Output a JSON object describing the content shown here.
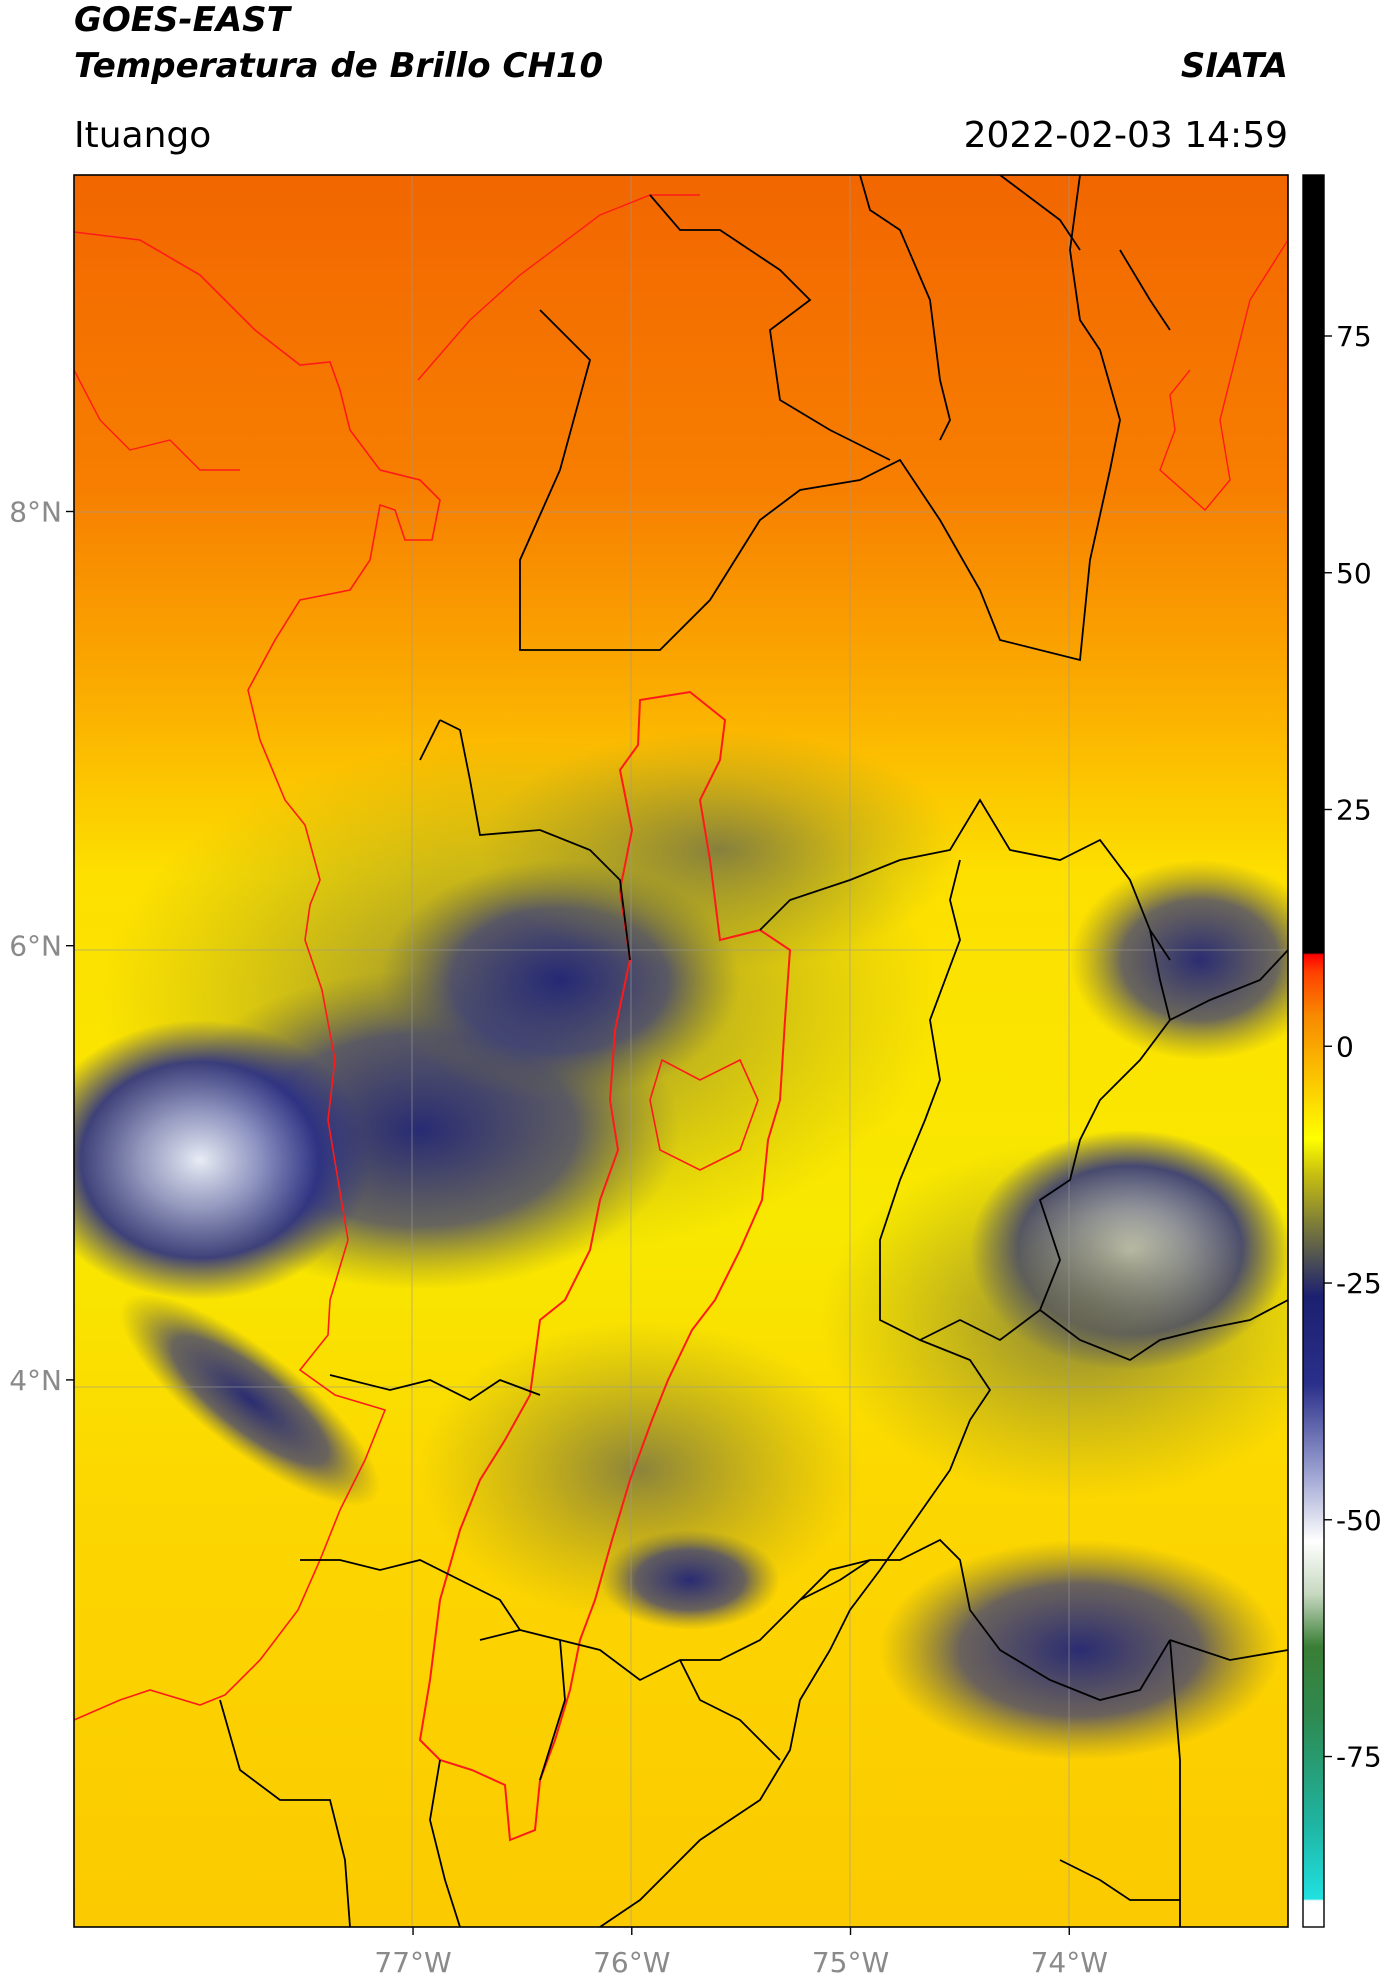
{
  "header": {
    "title_line1": "GOES-EAST",
    "title_line2": "Temperatura de Brillo CH10",
    "org": "SIATA",
    "location": "Ituango",
    "datetime": "2022-02-03 14:59"
  },
  "map": {
    "lon_ticks": [
      {
        "value": -77,
        "label": "77°W"
      },
      {
        "value": -76,
        "label": "76°W"
      },
      {
        "value": -75,
        "label": "75°W"
      },
      {
        "value": -74,
        "label": "74°W"
      }
    ],
    "lat_ticks": [
      {
        "value": 8,
        "label": "8°N"
      },
      {
        "value": 6,
        "label": "6°N"
      },
      {
        "value": 4,
        "label": "4°N"
      }
    ],
    "lon_range": [
      -78.55,
      -73.0
    ],
    "lat_range": [
      1.48,
      9.55
    ],
    "colors": {
      "warm": "#f26c00",
      "mid": "#fde000",
      "cloud": "#23297e",
      "border": "#000000",
      "region_outline": "#ff1a1a"
    }
  },
  "colorbar": {
    "ticks": [
      {
        "value": 75,
        "label": "75"
      },
      {
        "value": 50,
        "label": "50"
      },
      {
        "value": 25,
        "label": "25"
      },
      {
        "value": 0,
        "label": "0"
      },
      {
        "value": -25,
        "label": "-25"
      },
      {
        "value": -50,
        "label": "-50"
      },
      {
        "value": -75,
        "label": "-75"
      }
    ],
    "range": [
      -93,
      92
    ]
  }
}
